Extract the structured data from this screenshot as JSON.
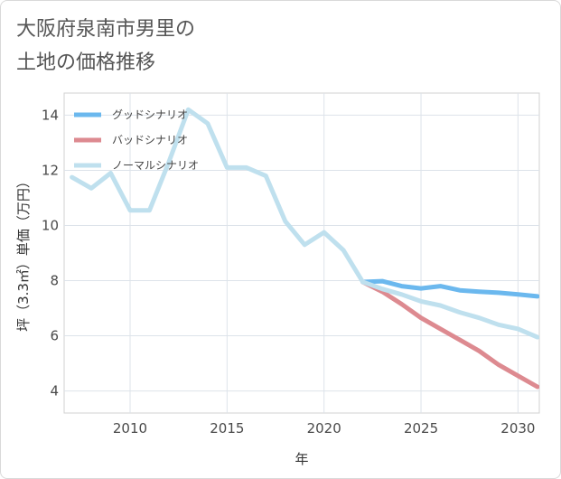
{
  "title": "大阪府泉南市男里の\n土地の価格推移",
  "chart_data": {
    "type": "line",
    "xlabel": "年",
    "ylabel": "坪（3.3㎡）単価（万円）",
    "xlim": [
      2006.6,
      2031.1
    ],
    "ylim": [
      3.2,
      14.8
    ],
    "xticks": [
      2010,
      2015,
      2020,
      2025,
      2030
    ],
    "yticks": [
      4,
      6,
      8,
      10,
      12,
      14
    ],
    "grid": true,
    "legend_position": "top-left",
    "series": [
      {
        "name": "グッドシナリオ",
        "color": "#6bb8ee",
        "x": [
          2022,
          2023,
          2024,
          2025,
          2026,
          2027,
          2028,
          2029,
          2030,
          2031
        ],
        "y": [
          7.95,
          7.98,
          7.8,
          7.72,
          7.8,
          7.65,
          7.6,
          7.56,
          7.5,
          7.43
        ]
      },
      {
        "name": "バッドシナリオ",
        "color": "#dd8a90",
        "x": [
          2022,
          2023,
          2024,
          2025,
          2026,
          2027,
          2028,
          2029,
          2030,
          2031
        ],
        "y": [
          7.95,
          7.6,
          7.15,
          6.65,
          6.25,
          5.85,
          5.45,
          4.95,
          4.55,
          4.15
        ]
      },
      {
        "name": "ノーマルシナリオ",
        "color": "#bfe0ee",
        "x": [
          2007,
          2008,
          2009,
          2010,
          2011,
          2012,
          2013,
          2014,
          2015,
          2016,
          2017,
          2018,
          2019,
          2020,
          2021,
          2022,
          2023,
          2024,
          2025,
          2026,
          2027,
          2028,
          2029,
          2030,
          2031
        ],
        "y": [
          11.75,
          11.35,
          11.9,
          10.55,
          10.55,
          12.3,
          14.2,
          13.7,
          12.1,
          12.1,
          11.8,
          10.15,
          9.3,
          9.75,
          9.1,
          7.95,
          7.7,
          7.5,
          7.25,
          7.1,
          6.85,
          6.65,
          6.4,
          6.25,
          5.95
        ]
      }
    ]
  }
}
